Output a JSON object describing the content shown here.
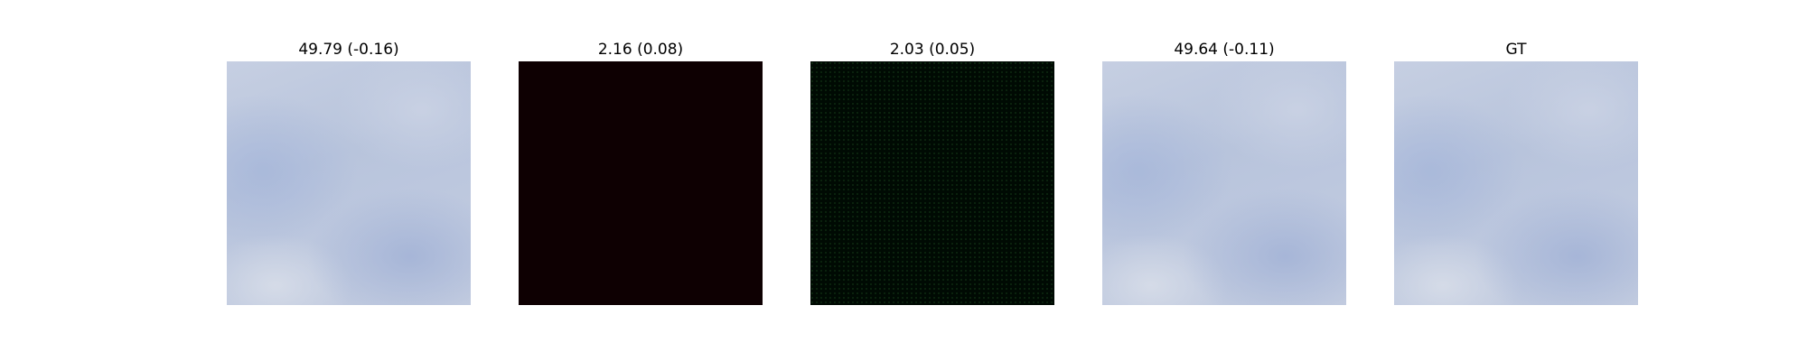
{
  "panels": [
    {
      "title": "49.79 (-0.16)",
      "image": "blue-sky-cloud-texture"
    },
    {
      "title": "2.16 (0.08)",
      "image": "near-black-dark-red-texture"
    },
    {
      "title": "2.03 (0.05)",
      "image": "near-black-dark-green-texture"
    },
    {
      "title": "49.64 (-0.11)",
      "image": "blue-sky-cloud-texture"
    },
    {
      "title": "GT",
      "image": "blue-sky-cloud-texture"
    }
  ]
}
